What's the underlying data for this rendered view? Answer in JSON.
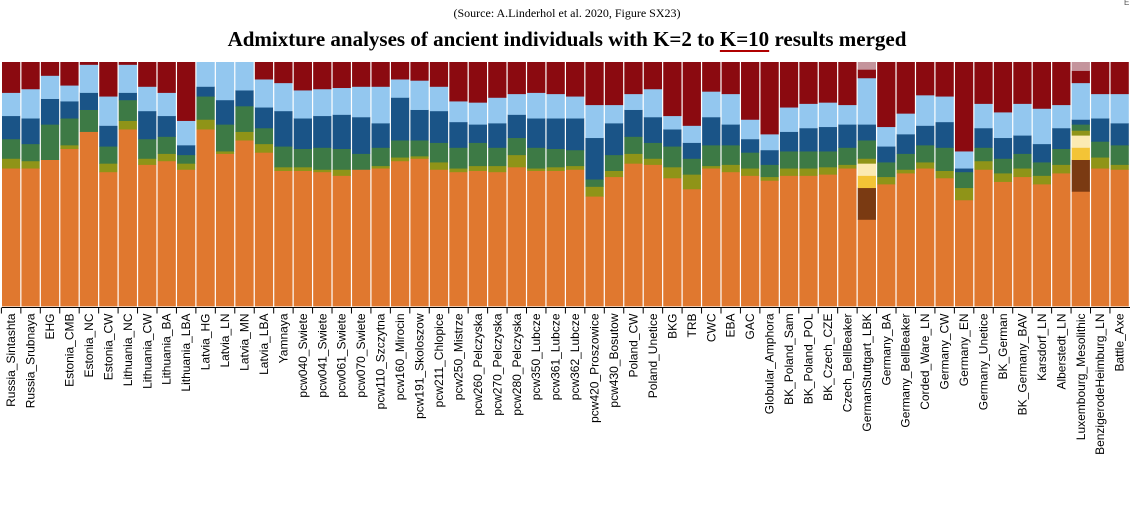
{
  "source": "(Source: A.Linderhol et al. 2020, Figure SX23)",
  "title_pre": "Admixture analyses of ancient individuals with K=2 to ",
  "title_highlight": "K=10",
  "title_post": " results merged",
  "edge_mark": "E",
  "colors": {
    "orange": "#e0782f",
    "olive": "#8f9418",
    "green": "#3d7a45",
    "navy": "#1a5487",
    "lightblue": "#93c7ef",
    "maroon": "#8b0a10",
    "yellow": "#f3c436",
    "cream": "#fbeab2",
    "brown": "#7a3a12",
    "pink": "#c4949c",
    "axis": "#000000"
  },
  "chart_data": {
    "type": "stacked bar",
    "ylim": [
      0,
      1
    ],
    "grid": false,
    "legend": "none",
    "component_order": [
      "orange",
      "brown",
      "yellow",
      "cream",
      "olive",
      "green",
      "navy",
      "lightblue",
      "maroon",
      "pink"
    ],
    "bars": [
      {
        "label": "Russia_Sintashta",
        "values": {
          "orange": 0.565,
          "olive": 0.04,
          "green": 0.08,
          "navy": 0.095,
          "lightblue": 0.095,
          "maroon": 0.125
        }
      },
      {
        "label": "Russia_Srubnaya",
        "values": {
          "orange": 0.565,
          "olive": 0.03,
          "green": 0.07,
          "navy": 0.105,
          "lightblue": 0.12,
          "maroon": 0.11
        }
      },
      {
        "label": "EHG",
        "values": {
          "orange": 0.6,
          "green": 0.145,
          "navy": 0.105,
          "lightblue": 0.095,
          "maroon": 0.055
        }
      },
      {
        "label": "Estonia_CMB",
        "values": {
          "orange": 0.645,
          "olive": 0.015,
          "green": 0.11,
          "navy": 0.07,
          "lightblue": 0.065,
          "maroon": 0.095
        }
      },
      {
        "label": "Estonia_NC",
        "values": {
          "orange": 0.715,
          "green": 0.09,
          "navy": 0.07,
          "lightblue": 0.115,
          "maroon": 0.01
        }
      },
      {
        "label": "Estonia_CW",
        "values": {
          "orange": 0.55,
          "olive": 0.035,
          "green": 0.07,
          "navy": 0.085,
          "lightblue": 0.12,
          "maroon": 0.14
        }
      },
      {
        "label": "Lithuania_NC",
        "values": {
          "orange": 0.725,
          "olive": 0.035,
          "green": 0.085,
          "navy": 0.03,
          "lightblue": 0.115,
          "maroon": 0.01
        }
      },
      {
        "label": "Lithuania_CW",
        "values": {
          "orange": 0.58,
          "olive": 0.025,
          "green": 0.08,
          "navy": 0.115,
          "lightblue": 0.1,
          "maroon": 0.1
        }
      },
      {
        "label": "Lithuania_BA",
        "values": {
          "orange": 0.595,
          "olive": 0.03,
          "green": 0.07,
          "navy": 0.085,
          "lightblue": 0.095,
          "maroon": 0.125
        }
      },
      {
        "label": "Lithuania_LBA",
        "values": {
          "orange": 0.56,
          "olive": 0.025,
          "green": 0.035,
          "navy": 0.04,
          "lightblue": 0.1,
          "maroon": 0.24
        }
      },
      {
        "label": "Latvia_HG",
        "values": {
          "orange": 0.725,
          "olive": 0.04,
          "green": 0.095,
          "navy": 0.04,
          "lightblue": 0.1
        }
      },
      {
        "label": "Latvia_LN",
        "values": {
          "orange": 0.625,
          "olive": 0.01,
          "green": 0.11,
          "navy": 0.1,
          "lightblue": 0.155
        }
      },
      {
        "label": "Latvia_MN",
        "values": {
          "orange": 0.68,
          "olive": 0.035,
          "green": 0.105,
          "navy": 0.065,
          "lightblue": 0.115
        }
      },
      {
        "label": "Latvia_LBA",
        "values": {
          "orange": 0.63,
          "olive": 0.035,
          "green": 0.065,
          "navy": 0.085,
          "lightblue": 0.115,
          "maroon": 0.07
        }
      },
      {
        "label": "Yamnaya",
        "values": {
          "orange": 0.555,
          "olive": 0.015,
          "green": 0.085,
          "navy": 0.145,
          "lightblue": 0.115,
          "maroon": 0.085
        }
      },
      {
        "label": "pcw040_Swiete",
        "values": {
          "orange": 0.555,
          "olive": 0.015,
          "green": 0.075,
          "navy": 0.125,
          "lightblue": 0.115,
          "maroon": 0.115
        }
      },
      {
        "label": "pcw041_Swiete",
        "values": {
          "orange": 0.55,
          "olive": 0.01,
          "green": 0.09,
          "navy": 0.13,
          "lightblue": 0.11,
          "maroon": 0.11
        }
      },
      {
        "label": "pcw061_Swiete",
        "values": {
          "orange": 0.535,
          "olive": 0.025,
          "green": 0.085,
          "navy": 0.14,
          "lightblue": 0.11,
          "maroon": 0.105
        }
      },
      {
        "label": "pcw070_Swiete",
        "values": {
          "orange": 0.56,
          "green": 0.065,
          "navy": 0.15,
          "lightblue": 0.125,
          "maroon": 0.1
        }
      },
      {
        "label": "pcw110_Szczytna",
        "values": {
          "orange": 0.565,
          "olive": 0.01,
          "green": 0.075,
          "navy": 0.1,
          "lightblue": 0.15,
          "maroon": 0.1
        }
      },
      {
        "label": "pcw160_Mirocin",
        "values": {
          "orange": 0.595,
          "olive": 0.015,
          "green": 0.07,
          "navy": 0.175,
          "lightblue": 0.075,
          "maroon": 0.07
        }
      },
      {
        "label": "pcw191_Skoloszow",
        "values": {
          "orange": 0.605,
          "olive": 0.01,
          "green": 0.065,
          "navy": 0.125,
          "lightblue": 0.12,
          "maroon": 0.075
        }
      },
      {
        "label": "pcw211_Chlopice",
        "values": {
          "orange": 0.56,
          "olive": 0.03,
          "green": 0.08,
          "navy": 0.13,
          "lightblue": 0.1,
          "maroon": 0.1
        }
      },
      {
        "label": "pcw250_Mistrze",
        "values": {
          "orange": 0.55,
          "olive": 0.015,
          "green": 0.085,
          "navy": 0.105,
          "lightblue": 0.085,
          "maroon": 0.16
        }
      },
      {
        "label": "pcw260_Pelczyska",
        "values": {
          "orange": 0.555,
          "olive": 0.02,
          "green": 0.095,
          "navy": 0.075,
          "lightblue": 0.09,
          "maroon": 0.165
        }
      },
      {
        "label": "pcw270_Pelczyska",
        "values": {
          "orange": 0.55,
          "olive": 0.025,
          "green": 0.075,
          "navy": 0.1,
          "lightblue": 0.105,
          "maroon": 0.145
        }
      },
      {
        "label": "pcw280_Pelczyska",
        "values": {
          "orange": 0.57,
          "olive": 0.05,
          "green": 0.07,
          "navy": 0.095,
          "lightblue": 0.085,
          "maroon": 0.13
        }
      },
      {
        "label": "pcw350_Lubcze",
        "values": {
          "orange": 0.555,
          "olive": 0.01,
          "green": 0.085,
          "navy": 0.12,
          "lightblue": 0.105,
          "maroon": 0.125
        }
      },
      {
        "label": "pcw361_Lubcze",
        "values": {
          "orange": 0.555,
          "olive": 0.015,
          "green": 0.075,
          "navy": 0.125,
          "lightblue": 0.1,
          "maroon": 0.13
        }
      },
      {
        "label": "pcw362_Lubcze",
        "values": {
          "orange": 0.56,
          "olive": 0.015,
          "green": 0.065,
          "navy": 0.13,
          "lightblue": 0.09,
          "maroon": 0.14
        }
      },
      {
        "label": "pcw420_Proszowice",
        "values": {
          "orange": 0.45,
          "olive": 0.04,
          "green": 0.03,
          "navy": 0.17,
          "lightblue": 0.135,
          "maroon": 0.175
        }
      },
      {
        "label": "pcw430_Bosutow",
        "values": {
          "orange": 0.53,
          "olive": 0.025,
          "green": 0.065,
          "navy": 0.13,
          "lightblue": 0.075,
          "maroon": 0.175
        }
      },
      {
        "label": "Poland_CW",
        "values": {
          "orange": 0.585,
          "olive": 0.04,
          "green": 0.07,
          "navy": 0.11,
          "lightblue": 0.065,
          "maroon": 0.13
        }
      },
      {
        "label": "Poland_Unetice",
        "values": {
          "orange": 0.58,
          "olive": 0.025,
          "green": 0.065,
          "navy": 0.105,
          "lightblue": 0.115,
          "maroon": 0.11
        }
      },
      {
        "label": "BKG",
        "values": {
          "orange": 0.525,
          "olive": 0.045,
          "green": 0.085,
          "navy": 0.07,
          "lightblue": 0.055,
          "maroon": 0.22
        }
      },
      {
        "label": "TRB",
        "values": {
          "orange": 0.48,
          "olive": 0.06,
          "green": 0.065,
          "navy": 0.065,
          "lightblue": 0.07,
          "maroon": 0.26
        }
      },
      {
        "label": "CWC",
        "values": {
          "orange": 0.565,
          "olive": 0.01,
          "green": 0.085,
          "navy": 0.115,
          "lightblue": 0.105,
          "maroon": 0.12
        }
      },
      {
        "label": "EBA",
        "values": {
          "orange": 0.55,
          "olive": 0.03,
          "green": 0.08,
          "navy": 0.085,
          "lightblue": 0.125,
          "maroon": 0.13
        }
      },
      {
        "label": "GAC",
        "values": {
          "orange": 0.535,
          "olive": 0.03,
          "green": 0.065,
          "navy": 0.055,
          "lightblue": 0.08,
          "maroon": 0.235
        }
      },
      {
        "label": "Globular_Amphora",
        "values": {
          "orange": 0.515,
          "olive": 0.015,
          "green": 0.05,
          "navy": 0.06,
          "lightblue": 0.065,
          "maroon": 0.295
        }
      },
      {
        "label": "BK_Poland_Sam",
        "values": {
          "orange": 0.535,
          "olive": 0.03,
          "green": 0.07,
          "navy": 0.08,
          "lightblue": 0.1,
          "maroon": 0.185
        }
      },
      {
        "label": "BK_Poland_POL",
        "values": {
          "orange": 0.535,
          "olive": 0.03,
          "green": 0.07,
          "navy": 0.095,
          "lightblue": 0.1,
          "maroon": 0.17
        }
      },
      {
        "label": "BK_Czech_CZE",
        "values": {
          "orange": 0.54,
          "olive": 0.03,
          "green": 0.065,
          "navy": 0.1,
          "lightblue": 0.1,
          "maroon": 0.165
        }
      },
      {
        "label": "Czech_BellBeaker",
        "values": {
          "orange": 0.565,
          "olive": 0.015,
          "green": 0.07,
          "navy": 0.095,
          "lightblue": 0.08,
          "maroon": 0.175
        }
      },
      {
        "label": "GermanStuttgart_LBK",
        "values": {
          "orange": 0.355,
          "brown": 0.13,
          "yellow": 0.05,
          "cream": 0.05,
          "olive": 0.02,
          "green": 0.075,
          "navy": 0.065,
          "lightblue": 0.19,
          "maroon": 0.035,
          "pink": 0.03
        }
      },
      {
        "label": "Germany_BA",
        "values": {
          "orange": 0.5,
          "olive": 0.03,
          "green": 0.06,
          "navy": 0.065,
          "lightblue": 0.08,
          "maroon": 0.265
        }
      },
      {
        "label": "Germany_BellBeaker",
        "values": {
          "orange": 0.545,
          "olive": 0.015,
          "green": 0.065,
          "navy": 0.08,
          "lightblue": 0.085,
          "maroon": 0.21
        }
      },
      {
        "label": "Corded_Ware_LN",
        "values": {
          "orange": 0.565,
          "olive": 0.025,
          "green": 0.07,
          "navy": 0.08,
          "lightblue": 0.125,
          "maroon": 0.135
        }
      },
      {
        "label": "Germany_CW",
        "values": {
          "orange": 0.525,
          "olive": 0.03,
          "green": 0.095,
          "navy": 0.105,
          "lightblue": 0.105,
          "maroon": 0.14
        }
      },
      {
        "label": "Germany_EN",
        "values": {
          "orange": 0.435,
          "olive": 0.05,
          "green": 0.065,
          "navy": 0.015,
          "lightblue": 0.07,
          "maroon": 0.365
        }
      },
      {
        "label": "Germany_Unetice",
        "values": {
          "orange": 0.56,
          "olive": 0.035,
          "green": 0.055,
          "navy": 0.08,
          "lightblue": 0.1,
          "maroon": 0.17
        }
      },
      {
        "label": "BK_German",
        "values": {
          "orange": 0.51,
          "olive": 0.035,
          "green": 0.06,
          "navy": 0.085,
          "lightblue": 0.105,
          "maroon": 0.205
        }
      },
      {
        "label": "BK_Germany_BAV",
        "values": {
          "orange": 0.53,
          "olive": 0.035,
          "green": 0.06,
          "navy": 0.075,
          "lightblue": 0.13,
          "maroon": 0.17
        }
      },
      {
        "label": "Karsdorf_LN",
        "values": {
          "orange": 0.5,
          "olive": 0.035,
          "green": 0.055,
          "navy": 0.075,
          "lightblue": 0.145,
          "maroon": 0.19
        }
      },
      {
        "label": "Alberstedt_LN",
        "values": {
          "orange": 0.545,
          "olive": 0.035,
          "green": 0.065,
          "navy": 0.085,
          "lightblue": 0.095,
          "maroon": 0.175
        }
      },
      {
        "label": "Luxembourg_Mesolithic",
        "values": {
          "orange": 0.47,
          "brown": 0.13,
          "yellow": 0.05,
          "cream": 0.05,
          "olive": 0.02,
          "green": 0.025,
          "navy": 0.02,
          "lightblue": 0.15,
          "maroon": 0.05,
          "pink": 0.035
        }
      },
      {
        "label": "BenzigerodeHeimburg_LN",
        "values": {
          "orange": 0.565,
          "olive": 0.045,
          "green": 0.065,
          "navy": 0.095,
          "lightblue": 0.1,
          "maroon": 0.13
        }
      },
      {
        "label": "Battle_Axe",
        "values": {
          "orange": 0.56,
          "olive": 0.02,
          "green": 0.08,
          "navy": 0.09,
          "lightblue": 0.12,
          "maroon": 0.13
        }
      }
    ]
  }
}
